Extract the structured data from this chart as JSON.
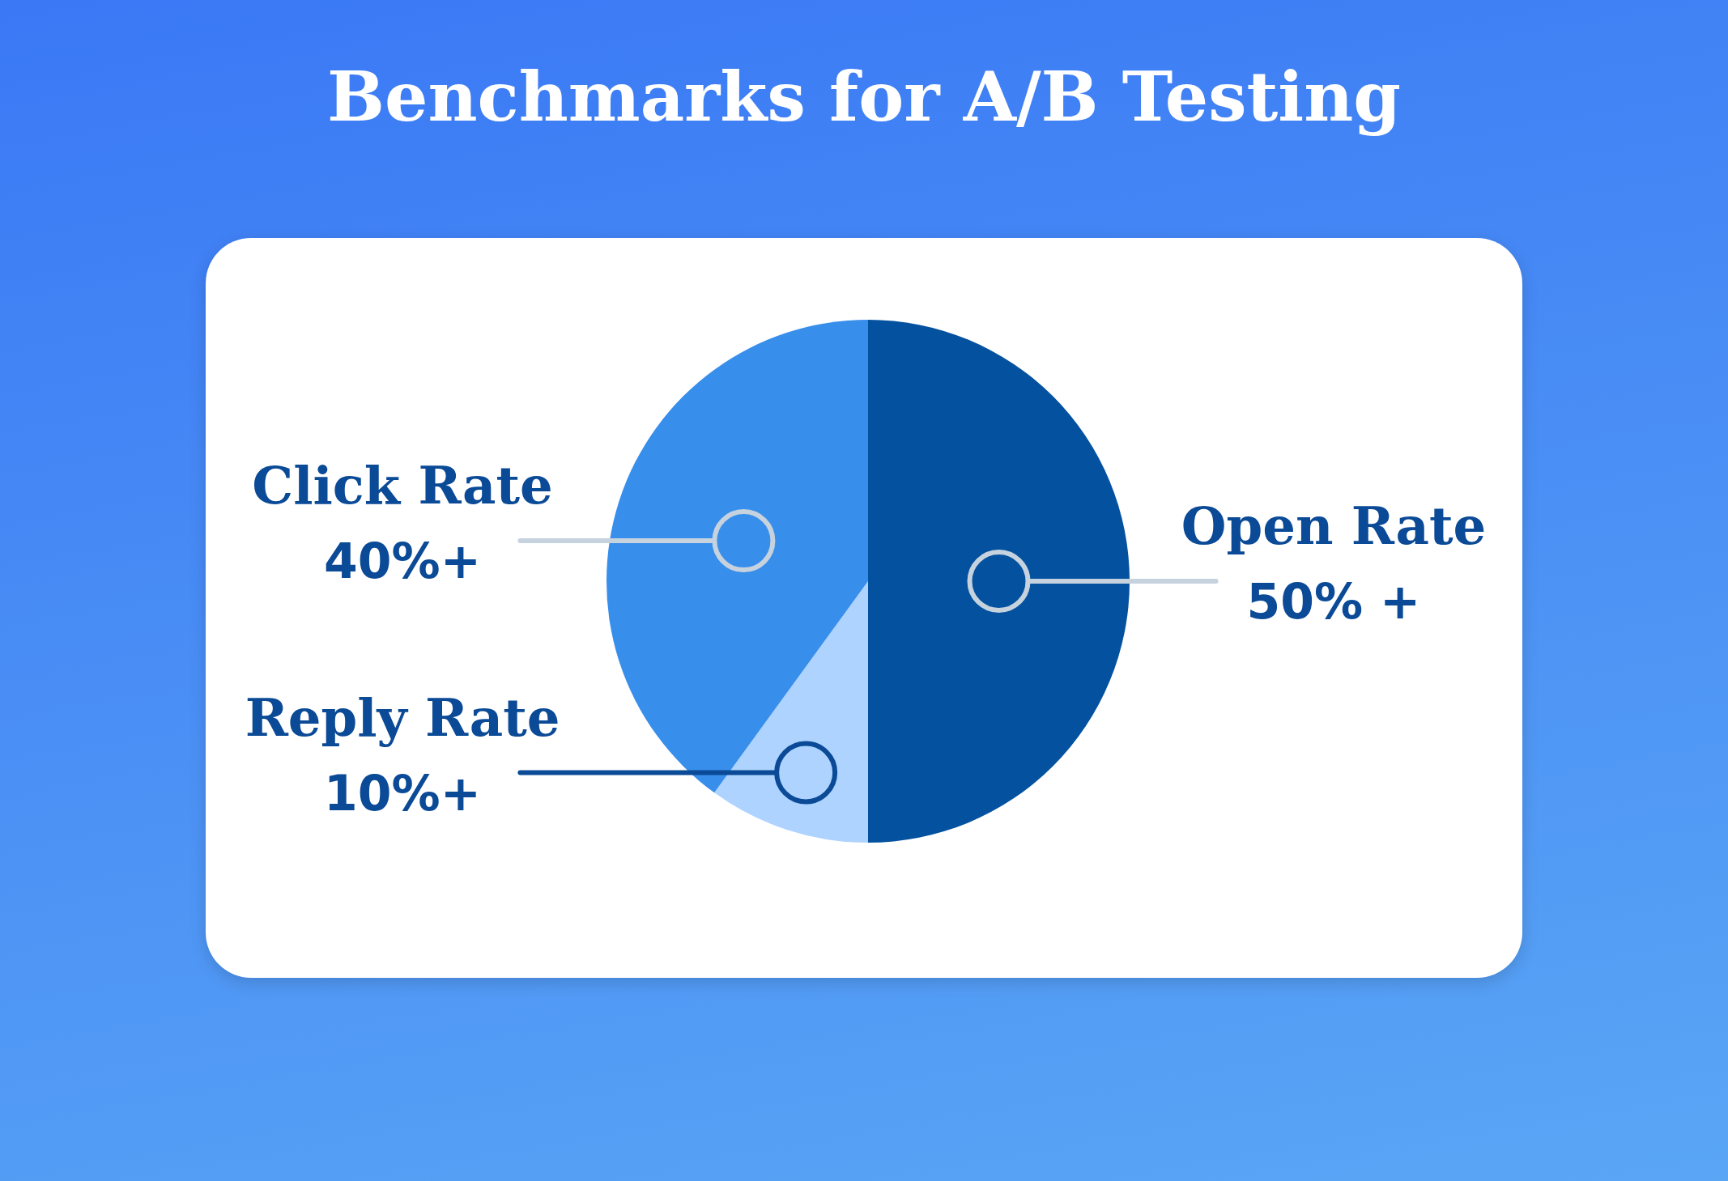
{
  "chart_data": {
    "type": "pie",
    "title": "Benchmarks for A/B Testing",
    "categories": [
      "Open Rate",
      "Reply Rate",
      "Click Rate"
    ],
    "values": [
      50,
      10,
      40
    ],
    "colors": [
      "#04529f",
      "#aed3fe",
      "#388eeb"
    ],
    "value_labels": [
      "50% +",
      "10%+",
      "40%+"
    ]
  }
}
